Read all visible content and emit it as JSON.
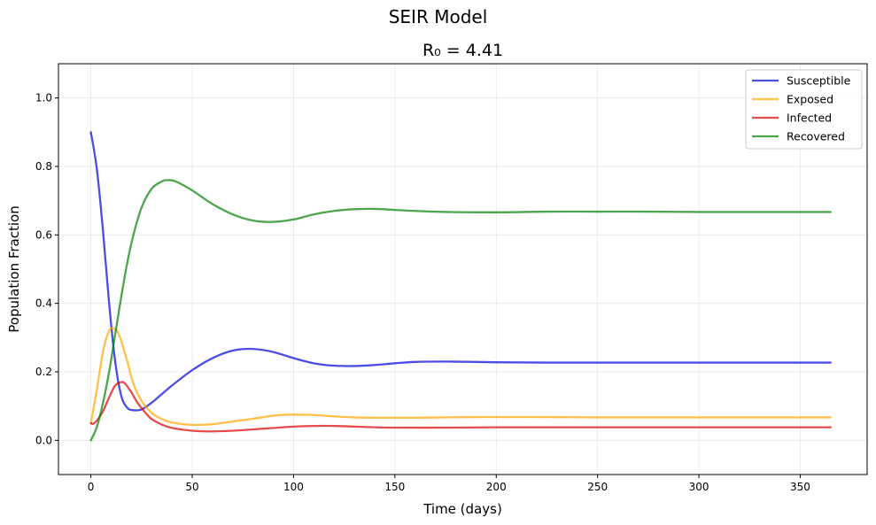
{
  "figure": {
    "suptitle": "SEIR Model"
  },
  "chart_data": {
    "type": "line",
    "title": "R₀ = 4.41",
    "xlabel": "Time (days)",
    "ylabel": "Population Fraction",
    "xlim": [
      -16,
      383
    ],
    "ylim": [
      -0.1,
      1.1
    ],
    "xticks": [
      0,
      50,
      100,
      150,
      200,
      250,
      300,
      350
    ],
    "yticks": [
      0.0,
      0.2,
      0.4,
      0.6,
      0.8,
      1.0
    ],
    "xtick_labels": [
      "0",
      "50",
      "100",
      "150",
      "200",
      "250",
      "300",
      "350"
    ],
    "ytick_labels": [
      "0.0",
      "0.2",
      "0.4",
      "0.6",
      "0.8",
      "1.0"
    ],
    "grid": true,
    "legend_position": "top-right",
    "series": [
      {
        "name": "Susceptible",
        "color": "#0000dd",
        "x": [
          0,
          3,
          6,
          9,
          12,
          15,
          18,
          21,
          25,
          30,
          35,
          40,
          50,
          60,
          70,
          80,
          90,
          100,
          110,
          120,
          130,
          140,
          150,
          160,
          175,
          190,
          200,
          225,
          250,
          275,
          300,
          325,
          350,
          365
        ],
        "y": [
          0.9,
          0.79,
          0.61,
          0.4,
          0.23,
          0.13,
          0.095,
          0.088,
          0.09,
          0.11,
          0.135,
          0.16,
          0.205,
          0.24,
          0.262,
          0.267,
          0.258,
          0.24,
          0.225,
          0.218,
          0.217,
          0.22,
          0.225,
          0.229,
          0.23,
          0.229,
          0.228,
          0.227,
          0.227,
          0.227,
          0.227,
          0.227,
          0.227,
          0.227
        ]
      },
      {
        "name": "Exposed",
        "color": "#ffa500",
        "x": [
          0,
          3,
          6,
          9,
          11,
          13,
          15,
          18,
          21,
          25,
          30,
          35,
          40,
          50,
          60,
          70,
          80,
          90,
          100,
          110,
          120,
          130,
          140,
          150,
          160,
          175,
          190,
          200,
          225,
          250,
          275,
          300,
          325,
          350,
          365
        ],
        "y": [
          0.05,
          0.15,
          0.26,
          0.32,
          0.327,
          0.318,
          0.29,
          0.23,
          0.165,
          0.115,
          0.08,
          0.062,
          0.052,
          0.045,
          0.047,
          0.055,
          0.063,
          0.072,
          0.075,
          0.074,
          0.07,
          0.067,
          0.066,
          0.066,
          0.066,
          0.067,
          0.068,
          0.068,
          0.068,
          0.067,
          0.067,
          0.067,
          0.067,
          0.067,
          0.067
        ]
      },
      {
        "name": "Infected",
        "color": "#dd0000",
        "x": [
          0,
          1,
          3,
          6,
          9,
          12,
          15,
          17,
          20,
          23,
          27,
          30,
          35,
          40,
          50,
          60,
          70,
          80,
          90,
          100,
          110,
          120,
          130,
          140,
          150,
          175,
          200,
          225,
          250,
          275,
          300,
          325,
          350,
          365
        ],
        "y": [
          0.05,
          0.048,
          0.058,
          0.085,
          0.125,
          0.16,
          0.17,
          0.165,
          0.14,
          0.11,
          0.08,
          0.062,
          0.046,
          0.036,
          0.028,
          0.026,
          0.028,
          0.032,
          0.036,
          0.04,
          0.042,
          0.042,
          0.04,
          0.038,
          0.037,
          0.037,
          0.038,
          0.038,
          0.038,
          0.038,
          0.038,
          0.038,
          0.038,
          0.038
        ]
      },
      {
        "name": "Recovered",
        "color": "#008000",
        "x": [
          0,
          3,
          6,
          9,
          12,
          15,
          18,
          21,
          25,
          30,
          35,
          38,
          42,
          50,
          60,
          70,
          80,
          90,
          100,
          110,
          120,
          130,
          140,
          150,
          160,
          175,
          200,
          225,
          250,
          275,
          300,
          325,
          350,
          365
        ],
        "y": [
          0.0,
          0.04,
          0.11,
          0.2,
          0.31,
          0.42,
          0.52,
          0.6,
          0.68,
          0.735,
          0.756,
          0.76,
          0.756,
          0.73,
          0.69,
          0.66,
          0.642,
          0.638,
          0.645,
          0.66,
          0.67,
          0.675,
          0.676,
          0.673,
          0.67,
          0.667,
          0.666,
          0.668,
          0.668,
          0.668,
          0.667,
          0.667,
          0.667,
          0.667
        ]
      }
    ]
  }
}
